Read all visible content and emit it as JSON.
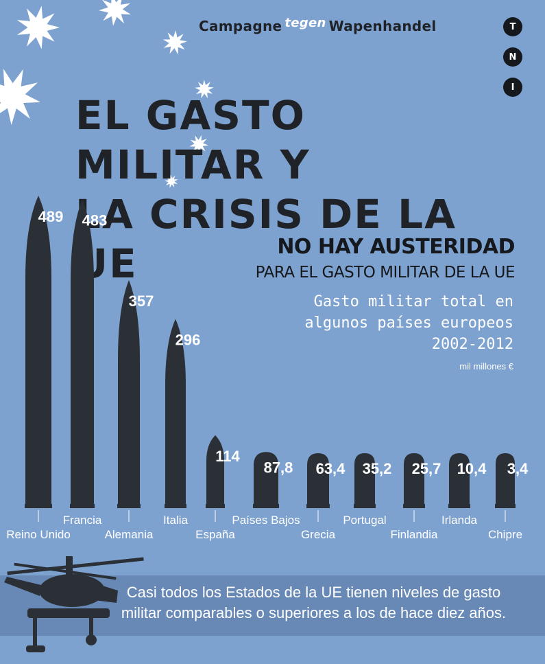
{
  "header": {
    "org_left": "Campagne",
    "org_mid": "tegen",
    "org_right": "Wapenhandel",
    "badges": [
      "T",
      "N",
      "I"
    ]
  },
  "title": {
    "line1": "EL GASTO MILITAR Y",
    "line2": "LA CRISIS DE LA UE"
  },
  "headline": "NO HAY AUSTERIDAD",
  "subheadline": "PARA EL GASTO MILITAR DE LA UE",
  "description": {
    "line1": "Gasto militar total en",
    "line2": "algunos países europeos",
    "line3": "2002-2012",
    "unit": "mil millones €"
  },
  "footer": {
    "line1": "Casi todos los Estados de la UE tienen niveles de gasto",
    "line2": "militar comparables o superiores a los de hace diez años."
  },
  "colors": {
    "background": "#7ea2cf",
    "bullet": "#2b3036",
    "value_label": "#ffffff",
    "banner": "#6889b6"
  },
  "icons": [
    "star-icon",
    "helicopter-icon",
    "bullet-icon"
  ],
  "chart_data": {
    "type": "bar",
    "categories": [
      "Reino Unido",
      "Francia",
      "Alemania",
      "Italia",
      "España",
      "Países Bajos",
      "Grecia",
      "Portugal",
      "Finlandia",
      "Irlanda",
      "Chipre"
    ],
    "value_labels": [
      "489",
      "483",
      "357",
      "296",
      "114",
      "87,8",
      "63,4",
      "35,2",
      "25,7",
      "10,4",
      "3,4"
    ],
    "series": [
      {
        "values": [
          489,
          483,
          357,
          296,
          114,
          87.8,
          63.4,
          35.2,
          25.7,
          10.4,
          3.4
        ]
      }
    ],
    "mark": "bullet",
    "grid": false,
    "legend": "none"
  }
}
